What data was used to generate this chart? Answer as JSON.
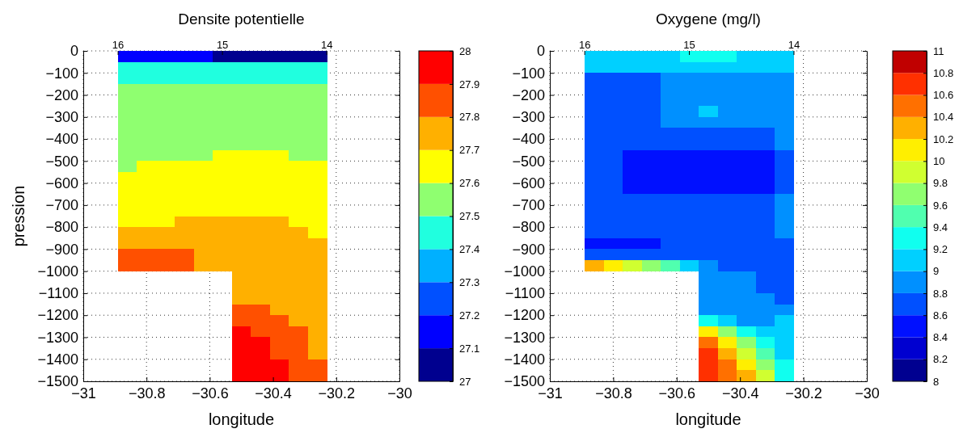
{
  "chart_data": [
    {
      "type": "heatmap",
      "title": "Densite potentielle",
      "xlabel": "longitude",
      "ylabel": "pression",
      "grid": true,
      "xlim": [
        -31,
        -30
      ],
      "xticks": [
        -31,
        -30.8,
        -30.6,
        -30.4,
        -30.2,
        -30
      ],
      "ylim": [
        -1500,
        0
      ],
      "yticks": [
        0,
        -100,
        -200,
        -300,
        -400,
        -500,
        -600,
        -700,
        -800,
        -900,
        -1000,
        -1100,
        -1200,
        -1300,
        -1400,
        -1500
      ],
      "x2lim": [
        16.33,
        13.3
      ],
      "x2ticks": [
        16,
        15,
        14
      ],
      "clim": [
        27,
        28
      ],
      "cticks": [
        27,
        27.1,
        27.2,
        27.3,
        27.4,
        27.5,
        27.6,
        27.7,
        27.8,
        27.9,
        28
      ],
      "colors": [
        "#00008f",
        "#0000ff",
        "#0050ff",
        "#00b0ff",
        "#20ffdf",
        "#8fff70",
        "#ffff00",
        "#ffb000",
        "#ff5000",
        "#ff0000"
      ],
      "x": [
        -30.86,
        -30.8,
        -30.74,
        -30.68,
        -30.62,
        -30.56,
        -30.5,
        -30.44,
        -30.38,
        -30.32,
        -30.26
      ],
      "y": [
        -25,
        -75,
        -125,
        -175,
        -225,
        -275,
        -325,
        -375,
        -425,
        -475,
        -525,
        -575,
        -625,
        -675,
        -725,
        -775,
        -825,
        -875,
        -925,
        -975,
        -1025,
        -1075,
        -1125,
        -1175,
        -1225,
        -1275,
        -1325,
        -1375,
        -1425,
        -1475
      ],
      "cells": [
        [
          27.15,
          27.15,
          27.15,
          27.15,
          27.15,
          27.05,
          27.05,
          27.05,
          27.05,
          27.05,
          27.05
        ],
        [
          27.45,
          27.45,
          27.45,
          27.45,
          27.45,
          27.45,
          27.45,
          27.45,
          27.45,
          27.45,
          27.45
        ],
        [
          27.45,
          27.45,
          27.45,
          27.45,
          27.45,
          27.45,
          27.45,
          27.45,
          27.45,
          27.45,
          27.45
        ],
        [
          27.55,
          27.55,
          27.55,
          27.55,
          27.55,
          27.55,
          27.55,
          27.55,
          27.55,
          27.55,
          27.55
        ],
        [
          27.55,
          27.55,
          27.55,
          27.55,
          27.55,
          27.55,
          27.55,
          27.55,
          27.55,
          27.55,
          27.55
        ],
        [
          27.55,
          27.55,
          27.55,
          27.55,
          27.55,
          27.55,
          27.55,
          27.55,
          27.55,
          27.55,
          27.55
        ],
        [
          27.55,
          27.55,
          27.55,
          27.55,
          27.55,
          27.55,
          27.55,
          27.55,
          27.55,
          27.55,
          27.55
        ],
        [
          27.55,
          27.55,
          27.55,
          27.55,
          27.55,
          27.55,
          27.55,
          27.55,
          27.55,
          27.55,
          27.55
        ],
        [
          27.55,
          27.55,
          27.55,
          27.55,
          27.55,
          27.55,
          27.55,
          27.55,
          27.55,
          27.55,
          27.55
        ],
        [
          27.55,
          27.55,
          27.55,
          27.55,
          27.55,
          27.65,
          27.65,
          27.65,
          27.65,
          27.55,
          27.55
        ],
        [
          27.55,
          27.65,
          27.65,
          27.65,
          27.65,
          27.65,
          27.65,
          27.65,
          27.65,
          27.65,
          27.65
        ],
        [
          27.65,
          27.65,
          27.65,
          27.65,
          27.65,
          27.65,
          27.65,
          27.65,
          27.65,
          27.65,
          27.65
        ],
        [
          27.65,
          27.65,
          27.65,
          27.65,
          27.65,
          27.65,
          27.65,
          27.65,
          27.65,
          27.65,
          27.65
        ],
        [
          27.65,
          27.65,
          27.65,
          27.65,
          27.65,
          27.65,
          27.65,
          27.65,
          27.65,
          27.65,
          27.65
        ],
        [
          27.65,
          27.65,
          27.65,
          27.65,
          27.65,
          27.65,
          27.65,
          27.65,
          27.65,
          27.65,
          27.65
        ],
        [
          27.65,
          27.65,
          27.65,
          27.75,
          27.75,
          27.75,
          27.75,
          27.75,
          27.75,
          27.65,
          27.65
        ],
        [
          27.75,
          27.75,
          27.75,
          27.75,
          27.75,
          27.75,
          27.75,
          27.75,
          27.75,
          27.75,
          27.65
        ],
        [
          27.75,
          27.75,
          27.75,
          27.75,
          27.75,
          27.75,
          27.75,
          27.75,
          27.75,
          27.75,
          27.75
        ],
        [
          27.85,
          27.85,
          27.85,
          27.85,
          27.75,
          27.75,
          27.75,
          27.75,
          27.75,
          27.75,
          27.75
        ],
        [
          27.85,
          27.85,
          27.85,
          27.85,
          27.75,
          27.75,
          27.75,
          27.75,
          27.75,
          27.75,
          27.75
        ],
        [
          null,
          null,
          null,
          null,
          null,
          null,
          27.75,
          27.75,
          27.75,
          27.75,
          27.75
        ],
        [
          null,
          null,
          null,
          null,
          null,
          null,
          27.75,
          27.75,
          27.75,
          27.75,
          27.75
        ],
        [
          null,
          null,
          null,
          null,
          null,
          null,
          27.75,
          27.75,
          27.75,
          27.75,
          27.75
        ],
        [
          null,
          null,
          null,
          null,
          null,
          null,
          27.85,
          27.85,
          27.75,
          27.75,
          27.75
        ],
        [
          null,
          null,
          null,
          null,
          null,
          null,
          27.85,
          27.85,
          27.85,
          27.75,
          27.75
        ],
        [
          null,
          null,
          null,
          null,
          null,
          null,
          27.95,
          27.85,
          27.85,
          27.85,
          27.75
        ],
        [
          null,
          null,
          null,
          null,
          null,
          null,
          27.95,
          27.95,
          27.85,
          27.85,
          27.75
        ],
        [
          null,
          null,
          null,
          null,
          null,
          null,
          27.95,
          27.95,
          27.85,
          27.85,
          27.75
        ],
        [
          null,
          null,
          null,
          null,
          null,
          null,
          27.95,
          27.95,
          27.95,
          27.85,
          27.85
        ],
        [
          null,
          null,
          null,
          null,
          null,
          null,
          27.95,
          27.95,
          27.95,
          27.85,
          27.85
        ]
      ]
    },
    {
      "type": "heatmap",
      "title": "Oxygene (mg/l)",
      "xlabel": "longitude",
      "grid": true,
      "xlim": [
        -31,
        -30
      ],
      "xticks": [
        -31,
        -30.8,
        -30.6,
        -30.4,
        -30.2,
        -30
      ],
      "ylim": [
        -1500,
        0
      ],
      "yticks": [
        0,
        -100,
        -200,
        -300,
        -400,
        -500,
        -600,
        -700,
        -800,
        -900,
        -1000,
        -1100,
        -1200,
        -1300,
        -1400,
        -1500
      ],
      "x2lim": [
        16.33,
        13.3
      ],
      "x2ticks": [
        16,
        15,
        14
      ],
      "clim": [
        8,
        11
      ],
      "cticks": [
        8,
        8.2,
        8.4,
        8.6,
        8.8,
        9,
        9.2,
        9.4,
        9.6,
        9.8,
        10,
        10.2,
        10.4,
        10.6,
        10.8,
        11
      ],
      "colors": [
        "#000090",
        "#0000d0",
        "#0010ff",
        "#0050ff",
        "#0090ff",
        "#00d0ff",
        "#10ffef",
        "#50ffaf",
        "#90ff70",
        "#d0ff30",
        "#ffef00",
        "#ffb000",
        "#ff7000",
        "#ff3000",
        "#c00000"
      ],
      "x": [
        -30.86,
        -30.8,
        -30.74,
        -30.68,
        -30.62,
        -30.56,
        -30.5,
        -30.44,
        -30.38,
        -30.32,
        -30.26
      ],
      "y": [
        -25,
        -75,
        -125,
        -175,
        -225,
        -275,
        -325,
        -375,
        -425,
        -475,
        -525,
        -575,
        -625,
        -675,
        -725,
        -775,
        -825,
        -875,
        -925,
        -975,
        -1025,
        -1075,
        -1125,
        -1175,
        -1225,
        -1275,
        -1325,
        -1375,
        -1425,
        -1475
      ],
      "cells": [
        [
          9.1,
          9.1,
          9.1,
          9.1,
          9.1,
          9.3,
          9.3,
          9.3,
          9.1,
          9.1,
          9.1
        ],
        [
          9.1,
          9.1,
          9.1,
          9.1,
          9.1,
          9.1,
          9.1,
          9.1,
          9.1,
          9.1,
          9.1
        ],
        [
          8.7,
          8.7,
          8.7,
          8.7,
          8.9,
          8.9,
          8.9,
          8.9,
          8.9,
          8.9,
          8.9
        ],
        [
          8.7,
          8.7,
          8.7,
          8.7,
          8.9,
          8.9,
          8.9,
          8.9,
          8.9,
          8.9,
          8.9
        ],
        [
          8.7,
          8.7,
          8.7,
          8.7,
          8.9,
          8.9,
          8.9,
          8.9,
          8.9,
          8.9,
          8.9
        ],
        [
          8.7,
          8.7,
          8.7,
          8.7,
          8.9,
          8.9,
          9.1,
          8.9,
          8.9,
          8.9,
          8.9
        ],
        [
          8.7,
          8.7,
          8.7,
          8.7,
          8.9,
          8.9,
          8.9,
          8.9,
          8.9,
          8.9,
          8.9
        ],
        [
          8.7,
          8.7,
          8.7,
          8.7,
          8.7,
          8.7,
          8.7,
          8.7,
          8.7,
          8.7,
          8.9
        ],
        [
          8.7,
          8.7,
          8.7,
          8.7,
          8.7,
          8.7,
          8.7,
          8.7,
          8.7,
          8.7,
          8.9
        ],
        [
          8.7,
          8.7,
          8.5,
          8.5,
          8.5,
          8.5,
          8.5,
          8.5,
          8.5,
          8.5,
          8.7
        ],
        [
          8.7,
          8.7,
          8.5,
          8.5,
          8.5,
          8.5,
          8.5,
          8.5,
          8.5,
          8.5,
          8.7
        ],
        [
          8.7,
          8.7,
          8.5,
          8.5,
          8.5,
          8.5,
          8.5,
          8.5,
          8.5,
          8.5,
          8.7
        ],
        [
          8.7,
          8.7,
          8.5,
          8.5,
          8.5,
          8.5,
          8.5,
          8.5,
          8.5,
          8.5,
          8.7
        ],
        [
          8.7,
          8.7,
          8.7,
          8.7,
          8.7,
          8.7,
          8.7,
          8.7,
          8.7,
          8.7,
          8.9
        ],
        [
          8.7,
          8.7,
          8.7,
          8.7,
          8.7,
          8.7,
          8.7,
          8.7,
          8.7,
          8.7,
          8.9
        ],
        [
          8.7,
          8.7,
          8.7,
          8.7,
          8.7,
          8.7,
          8.7,
          8.7,
          8.7,
          8.7,
          8.9
        ],
        [
          8.7,
          8.7,
          8.7,
          8.7,
          8.7,
          8.7,
          8.7,
          8.7,
          8.7,
          8.7,
          8.9
        ],
        [
          8.5,
          8.5,
          8.5,
          8.5,
          8.7,
          8.7,
          8.7,
          8.7,
          8.7,
          8.7,
          8.7
        ],
        [
          8.7,
          8.7,
          8.7,
          8.7,
          8.7,
          8.7,
          8.7,
          8.7,
          8.7,
          8.7,
          8.7
        ],
        [
          10.3,
          10.1,
          9.9,
          9.7,
          9.5,
          9.1,
          8.9,
          8.7,
          8.7,
          8.7,
          8.7
        ],
        [
          null,
          null,
          null,
          null,
          null,
          null,
          8.9,
          8.9,
          8.9,
          8.7,
          8.7
        ],
        [
          null,
          null,
          null,
          null,
          null,
          null,
          8.9,
          8.9,
          8.9,
          8.7,
          8.7
        ],
        [
          null,
          null,
          null,
          null,
          null,
          null,
          8.9,
          8.9,
          8.9,
          8.9,
          8.7
        ],
        [
          null,
          null,
          null,
          null,
          null,
          null,
          8.9,
          8.9,
          8.9,
          8.9,
          8.9
        ],
        [
          null,
          null,
          null,
          null,
          null,
          null,
          9.3,
          9.1,
          8.9,
          8.9,
          9.1
        ],
        [
          null,
          null,
          null,
          null,
          null,
          null,
          10.1,
          9.7,
          9.3,
          9.1,
          9.1
        ],
        [
          null,
          null,
          null,
          null,
          null,
          null,
          10.5,
          10.1,
          9.7,
          9.3,
          9.1
        ],
        [
          null,
          null,
          null,
          null,
          null,
          null,
          10.7,
          10.3,
          9.9,
          9.5,
          9.1
        ],
        [
          null,
          null,
          null,
          null,
          null,
          null,
          10.7,
          10.5,
          10.1,
          9.7,
          9.3
        ],
        [
          null,
          null,
          null,
          null,
          null,
          null,
          10.7,
          10.5,
          10.3,
          9.9,
          9.3
        ]
      ]
    }
  ]
}
